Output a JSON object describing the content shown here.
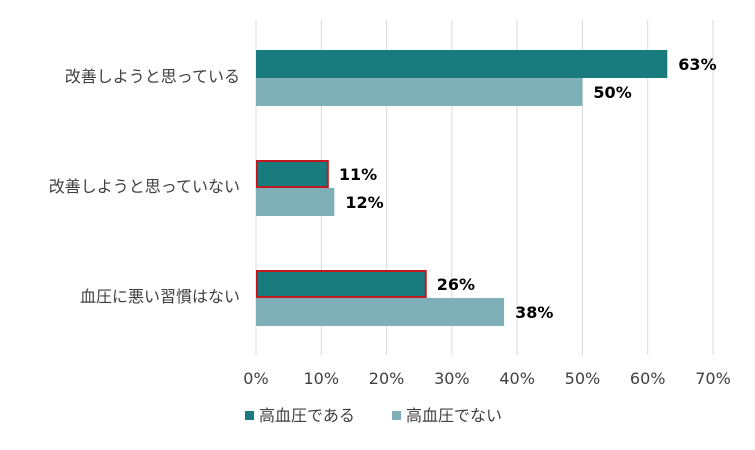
{
  "chart_data": {
    "type": "bar",
    "orientation": "horizontal",
    "categories": [
      "改善しようと思っている",
      "改善しようと思っていない",
      "血圧に悪い習慣はない"
    ],
    "series": [
      {
        "name": "高血圧である",
        "values": [
          63,
          11,
          26
        ],
        "labels": [
          "63%",
          "11%",
          "26%"
        ],
        "color": "#1a7b7e",
        "highlight_outline": [
          false,
          true,
          true
        ]
      },
      {
        "name": "高血圧でない",
        "values": [
          50,
          12,
          38
        ],
        "labels": [
          "50%",
          "12%",
          "38%"
        ],
        "color": "#7fb0b8"
      }
    ],
    "x_ticks": [
      "0%",
      "10%",
      "20%",
      "30%",
      "40%",
      "50%",
      "60%",
      "70%"
    ],
    "xlim": [
      0,
      70
    ],
    "grid": true,
    "legend_position": "bottom",
    "outline_color": "#c0191f"
  }
}
